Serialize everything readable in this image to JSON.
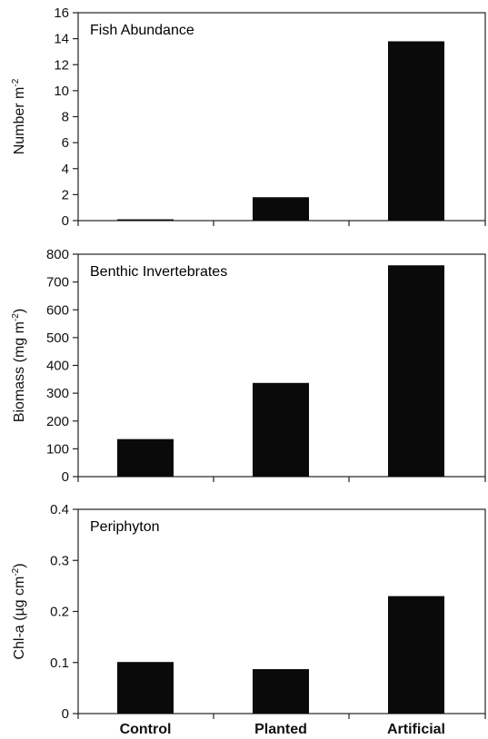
{
  "chart_data": [
    {
      "type": "bar",
      "title": "Fish Abundance",
      "ylabel_main": "Number m",
      "ylabel_sup": "-2",
      "ylabel_tail": "",
      "ylim": [
        0,
        16
      ],
      "yticks": [
        0,
        2,
        4,
        6,
        8,
        10,
        12,
        14,
        16
      ],
      "categories": [
        "Control",
        "Planted",
        "Artificial"
      ],
      "values": [
        0.1,
        1.8,
        13.8
      ],
      "grid": false
    },
    {
      "type": "bar",
      "title": "Benthic Invertebrates",
      "ylabel_main": "Biomass (mg m",
      "ylabel_sup": "-2",
      "ylabel_tail": ")",
      "ylim": [
        0,
        800
      ],
      "yticks": [
        0,
        100,
        200,
        300,
        400,
        500,
        600,
        700,
        800
      ],
      "categories": [
        "Control",
        "Planted",
        "Artificial"
      ],
      "values": [
        135,
        337,
        760
      ],
      "grid": false
    },
    {
      "type": "bar",
      "title": "Periphyton",
      "ylabel_main": "Chl-a (µg cm",
      "ylabel_sup": "-2",
      "ylabel_tail": ")",
      "ylim": [
        0,
        0.4
      ],
      "yticks": [
        "0",
        "0.1",
        "0.2",
        "0.3",
        "0.4"
      ],
      "categories": [
        "Control",
        "Planted",
        "Artificial"
      ],
      "values": [
        0.101,
        0.087,
        0.23
      ],
      "grid": false
    }
  ],
  "x_category_labels": [
    "Control",
    "Planted",
    "Artificial"
  ],
  "colors": {
    "bar": "#0a0a0a",
    "axis": "#222222"
  }
}
